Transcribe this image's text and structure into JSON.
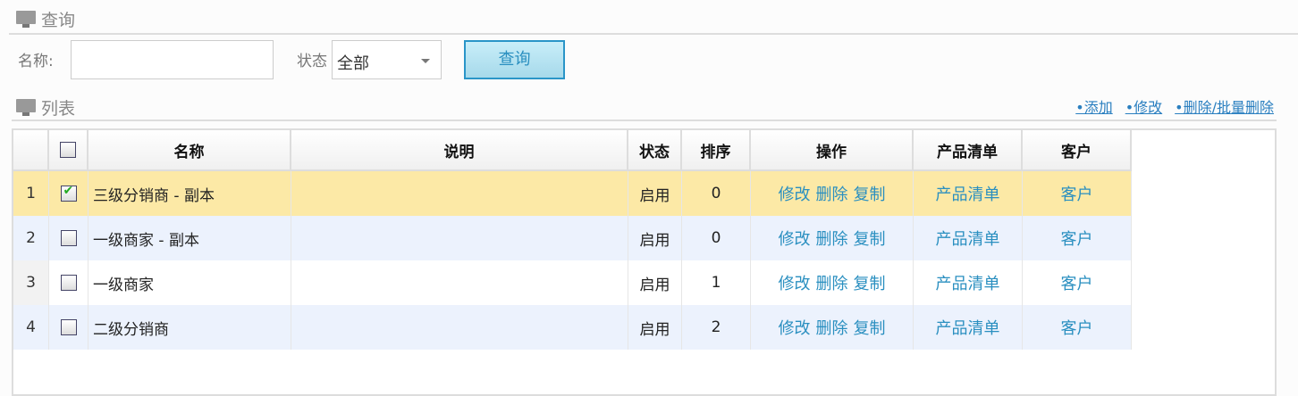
{
  "search_section": {
    "title": "查询",
    "name_label": "名称:",
    "name_value": "",
    "status_label": "状态",
    "status_value": "全部",
    "query_button": "查询"
  },
  "list_section": {
    "title": "列表",
    "actions": [
      "•添加",
      "•修改",
      "•删除/批量删除"
    ]
  },
  "table": {
    "headers": [
      "名称",
      "说明",
      "状态",
      "排序",
      "操作",
      "产品清单",
      "客户"
    ],
    "rows": [
      {
        "num": "1",
        "checked": true,
        "name": "三级分销商 - 副本",
        "desc": "",
        "status": "启用",
        "order": "0",
        "edit": "修改",
        "del": "删除",
        "copy": "复制",
        "products": "产品清单",
        "customer": "客户",
        "bg": "#fce9a6"
      },
      {
        "num": "2",
        "checked": false,
        "name": "一级商家 - 副本",
        "desc": "",
        "status": "启用",
        "order": "0",
        "edit": "修改",
        "del": "删除",
        "copy": "复制",
        "products": "产品清单",
        "customer": "客户",
        "bg": "#ecf2fd"
      },
      {
        "num": "3",
        "checked": false,
        "name": "一级商家",
        "desc": "",
        "status": "启用",
        "order": "1",
        "edit": "修改",
        "del": "删除",
        "copy": "复制",
        "products": "产品清单",
        "customer": "客户",
        "bg": "#ffffff"
      },
      {
        "num": "4",
        "checked": false,
        "name": "二级分销商",
        "desc": "",
        "status": "启用",
        "order": "2",
        "edit": "修改",
        "del": "删除",
        "copy": "复制",
        "products": "产品清单",
        "customer": "客户",
        "bg": "#ecf2fd"
      }
    ]
  }
}
